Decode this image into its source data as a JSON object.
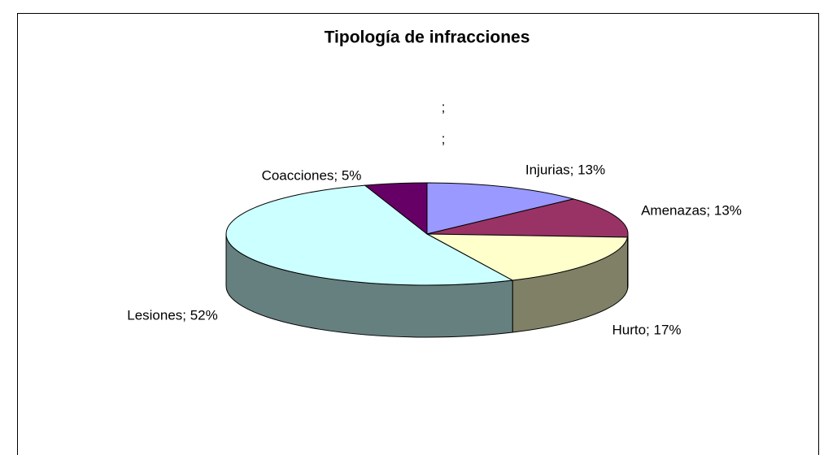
{
  "chart_data": {
    "type": "pie3d",
    "title": "Tipología de infracciones",
    "values": [
      13,
      13,
      17,
      52,
      5,
      0,
      0
    ],
    "value_labels": [
      "Injurias; 13%",
      "Amenazas; 13%",
      "Hurto; 17%",
      "Lesiones; 52%",
      "Coacciones; 5%",
      ";",
      ";"
    ],
    "colors": [
      "#9999ff",
      "#993366",
      "#ffffcc",
      "#ccffff",
      "#660066",
      "#ff8080",
      "#0066cc"
    ],
    "side_colors": [
      "#666699",
      "#662244",
      "#808066",
      "#668080",
      "#440044",
      "#aa5555",
      "#004488"
    ]
  }
}
